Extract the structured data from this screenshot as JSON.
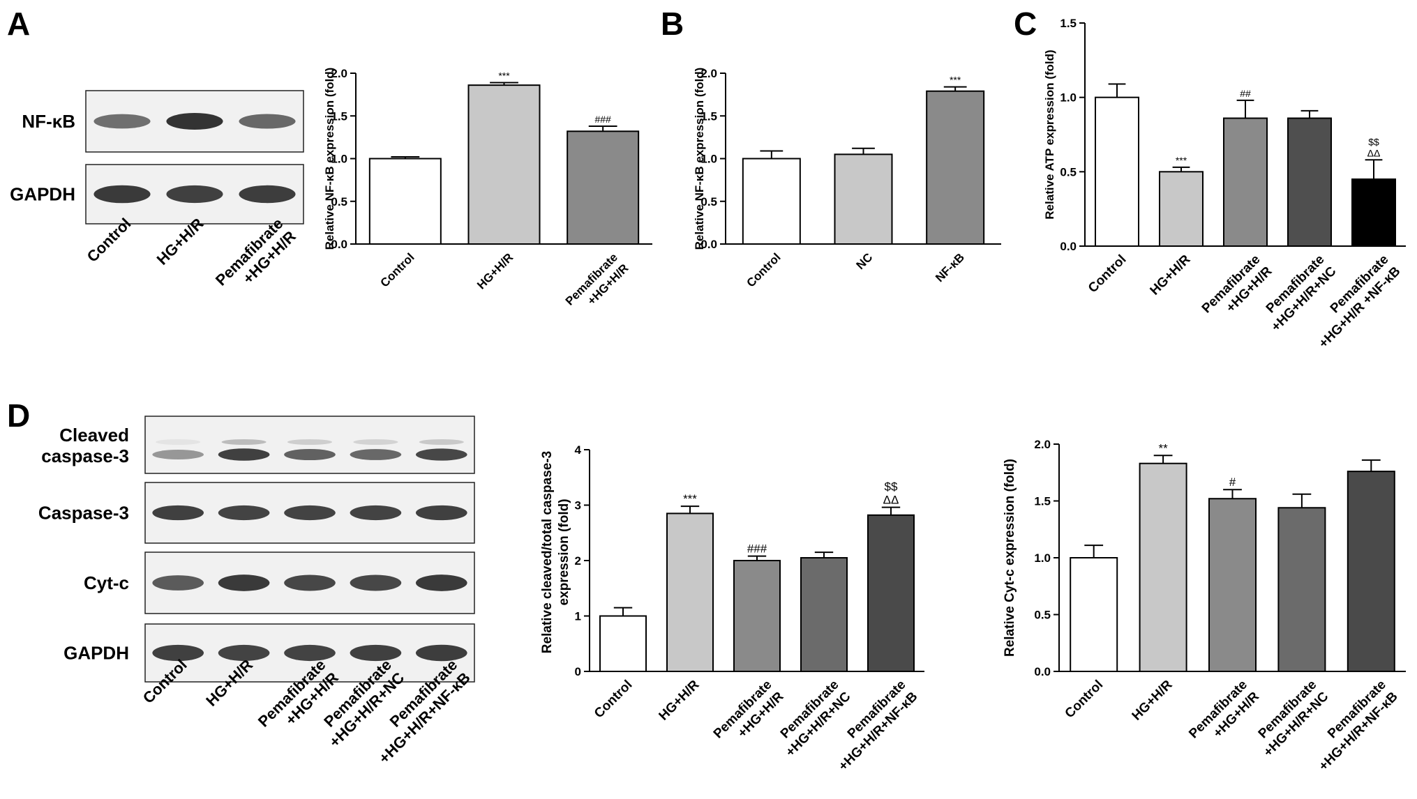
{
  "panels": {
    "A": {
      "label": "A",
      "blot": {
        "rows": [
          "NF-κB",
          "GAPDH"
        ],
        "lanes": [
          "Control",
          "HG+H/R",
          "Pemafibrate\n+HG+H/R"
        ]
      }
    },
    "B": {
      "label": "B"
    },
    "C": {
      "label": "C"
    },
    "D": {
      "label": "D",
      "blot": {
        "rows": [
          "Cleaved\ncaspase-3",
          "Caspase-3",
          "Cyt-c",
          "GAPDH"
        ],
        "lanes": [
          "Control",
          "HG+H/R",
          "Pemafibrate\n+HG+H/R",
          "Pemafibrate\n+HG+H/R+NC",
          "Pemafibrate\n+HG+H/R+NF-κB"
        ]
      }
    }
  },
  "chart_data": [
    {
      "panel": "A",
      "type": "bar",
      "categories": [
        "Control",
        "HG+H/R",
        "Pemafibrate\n+HG+H/R"
      ],
      "values": [
        1.0,
        1.86,
        1.32
      ],
      "errors": [
        0.02,
        0.03,
        0.06
      ],
      "annotations": [
        "",
        "***",
        "###"
      ],
      "ylabel": "Relative NF-κB expression (fold)",
      "ylim": [
        0,
        2.0
      ],
      "yticks": [
        "0.0",
        "0.5",
        "1.0",
        "1.5",
        "2.0"
      ],
      "colors": [
        "#ffffff",
        "#c8c8c8",
        "#8a8a8a"
      ]
    },
    {
      "panel": "B",
      "type": "bar",
      "categories": [
        "Control",
        "NC",
        "NF-κB"
      ],
      "values": [
        1.0,
        1.05,
        1.79
      ],
      "errors": [
        0.09,
        0.07,
        0.05
      ],
      "annotations": [
        "",
        "",
        "***"
      ],
      "ylabel": "Relative NF-κB expression (fold)",
      "ylim": [
        0,
        2.0
      ],
      "yticks": [
        "0.0",
        "0.5",
        "1.0",
        "1.5",
        "2.0"
      ],
      "colors": [
        "#ffffff",
        "#c8c8c8",
        "#8a8a8a"
      ]
    },
    {
      "panel": "C",
      "type": "bar",
      "categories": [
        "Control",
        "HG+H/R",
        "Pemafibrate\n+HG+H/R",
        "Pemafibrate\n+HG+H/R+NC",
        "Pemafibrate\n+HG+H/R +NF-κB"
      ],
      "values": [
        1.0,
        0.5,
        0.86,
        0.86,
        0.45
      ],
      "errors": [
        0.09,
        0.03,
        0.12,
        0.05,
        0.13
      ],
      "annotations": [
        "",
        "***",
        "##",
        "",
        "$$\nΔΔ"
      ],
      "ylabel": "Relative ATP expression (fold)",
      "ylim": [
        0,
        1.5
      ],
      "yticks": [
        "0.0",
        "0.5",
        "1.0",
        "1.5"
      ],
      "colors": [
        "#ffffff",
        "#c8c8c8",
        "#8a8a8a",
        "#4f4f4f",
        "#000000"
      ]
    },
    {
      "panel": "D",
      "type": "bar",
      "categories": [
        "Control",
        "HG+H/R",
        "Pemafibrate\n+HG+H/R",
        "Pemafibrate\n+HG+H/R+NC",
        "Pemafibrate\n+HG+H/R+NF-κB"
      ],
      "values": [
        1.0,
        2.85,
        2.0,
        2.05,
        2.82
      ],
      "errors": [
        0.15,
        0.13,
        0.08,
        0.1,
        0.14
      ],
      "annotations": [
        "",
        "***",
        "###",
        "",
        "$$\nΔΔ"
      ],
      "ylabel": "Relative cleaved/total caspase-3\nexpression (fold)",
      "ylim": [
        0,
        4
      ],
      "yticks": [
        "0",
        "1",
        "2",
        "3",
        "4"
      ],
      "colors": [
        "#ffffff",
        "#c8c8c8",
        "#8a8a8a",
        "#6b6b6b",
        "#4a4a4a"
      ]
    },
    {
      "panel": "D",
      "type": "bar",
      "categories": [
        "Control",
        "HG+H/R",
        "Pemafibrate\n+HG+H/R",
        "Pemafibrate\n+HG+H/R+NC",
        "Pemafibrate\n+HG+H/R+NF-κB"
      ],
      "values": [
        1.0,
        1.83,
        1.52,
        1.44,
        1.76
      ],
      "errors": [
        0.11,
        0.07,
        0.08,
        0.12,
        0.1
      ],
      "annotations": [
        "",
        "**",
        "#",
        "",
        ""
      ],
      "ylabel": "Relative Cyt-c expression (fold)",
      "ylim": [
        0,
        2.0
      ],
      "yticks": [
        "0.0",
        "0.5",
        "1.0",
        "1.5",
        "2.0"
      ],
      "colors": [
        "#ffffff",
        "#c8c8c8",
        "#8a8a8a",
        "#6b6b6b",
        "#4a4a4a"
      ]
    }
  ]
}
